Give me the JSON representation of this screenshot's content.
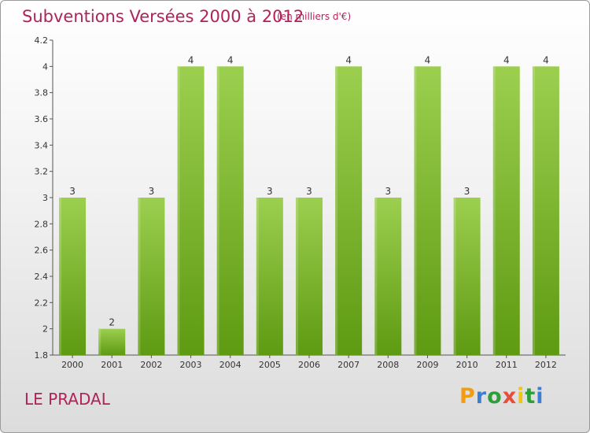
{
  "header": {
    "title": "Subventions Versées 2000 à 2012",
    "subtitle": "(en milliers d'€)"
  },
  "footer": {
    "commune": "LE PRADAL",
    "logo_text": "Proxiti",
    "logo_colors": [
      "#f39c12",
      "#3a7fd5",
      "#2e9e3a",
      "#e74c3c",
      "#f1c40f",
      "#2e9e3a",
      "#3a7fd5"
    ]
  },
  "chart_data": {
    "type": "bar",
    "categories": [
      "2000",
      "2001",
      "2002",
      "2003",
      "2004",
      "2005",
      "2006",
      "2007",
      "2008",
      "2009",
      "2010",
      "2011",
      "2012"
    ],
    "values": [
      3,
      2,
      3,
      4,
      4,
      3,
      3,
      4,
      3,
      4,
      3,
      4,
      4
    ],
    "value_labels": [
      "3",
      "2",
      "3",
      "4",
      "4",
      "3",
      "3",
      "4",
      "3",
      "4",
      "3",
      "4",
      "4"
    ],
    "ylim": [
      1.8,
      4.2
    ],
    "yticks": [
      1.8,
      2,
      2.2,
      2.4,
      2.6,
      2.8,
      3,
      3.2,
      3.4,
      3.6,
      3.8,
      4,
      4.2
    ],
    "ytick_labels": [
      "1.8",
      "2",
      "2.2",
      "2.4",
      "2.6",
      "2.8",
      "3",
      "3.2",
      "3.4",
      "3.6",
      "3.8",
      "4",
      "4.2"
    ],
    "bar_color_top": "#9ccf4f",
    "bar_color_bottom": "#5e9a12",
    "grid": false,
    "xlabel": "",
    "ylabel": ""
  }
}
